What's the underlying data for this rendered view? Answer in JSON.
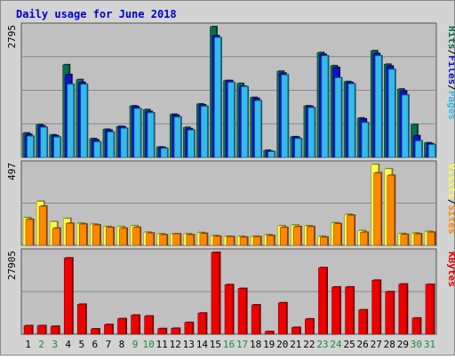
{
  "chart_data": {
    "type": "bar",
    "title": "Daily usage for June 2018",
    "days": [
      "1",
      "2",
      "3",
      "4",
      "5",
      "6",
      "7",
      "8",
      "9",
      "10",
      "11",
      "12",
      "13",
      "14",
      "15",
      "16",
      "17",
      "18",
      "19",
      "20",
      "21",
      "22",
      "23",
      "24",
      "25",
      "26",
      "27",
      "28",
      "29",
      "30",
      "31"
    ],
    "weekend_days": [
      "2",
      "3",
      "9",
      "10",
      "16",
      "17",
      "23",
      "24",
      "30",
      "31"
    ],
    "colors": {
      "title": "#0000cc",
      "hits": "#0b6e4f",
      "files": "#1111cc",
      "pages": "#33bbee",
      "visits": "#ffff44",
      "sites": "#ff8800",
      "kbytes": "#ee0000",
      "weekday_label": "#000000",
      "weekend_label": "#1a8a3a",
      "panel_bg": "#c0c0c0",
      "frame_bg": "#d3d3d3",
      "grid": "#888888"
    },
    "panels": [
      {
        "id": "hits-files-pages",
        "axis_label": "2795",
        "max": 2795,
        "side_labels": [
          {
            "text": "Hits",
            "color": "hits"
          },
          {
            "text": "/",
            "color": "separator"
          },
          {
            "text": "Files",
            "color": "files"
          },
          {
            "text": "/",
            "color": "separator"
          },
          {
            "text": "Pages",
            "color": "pages"
          }
        ],
        "series": [
          {
            "name": "Hits",
            "color": "hits",
            "values": [
              520,
              700,
              480,
              1980,
              1660,
              400,
              600,
              660,
              1100,
              1020,
              220,
              920,
              640,
              1140,
              2795,
              1640,
              1580,
              1280,
              150,
              1840,
              440,
              1100,
              2240,
              1960,
              1620,
              840,
              2280,
              1990,
              1460,
              700,
              310
            ]
          },
          {
            "name": "Files",
            "color": "files",
            "values": [
              490,
              670,
              460,
              1770,
              1600,
              370,
              580,
              650,
              1080,
              980,
              210,
              900,
              610,
              1120,
              2600,
              1640,
              1520,
              1260,
              130,
              1800,
              430,
              1090,
              2200,
              1920,
              1600,
              820,
              2220,
              1950,
              1420,
              460,
              290
            ]
          },
          {
            "name": "Pages",
            "color": "pages",
            "values": [
              450,
              640,
              430,
              1560,
              1560,
              330,
              540,
              620,
              1040,
              950,
              190,
              860,
              580,
              1090,
              2560,
              1600,
              1510,
              1210,
              120,
              1760,
              400,
              1060,
              2170,
              1700,
              1570,
              740,
              2170,
              1880,
              1330,
              350,
              270
            ]
          }
        ]
      },
      {
        "id": "visits-sites",
        "axis_label": "497",
        "max": 497,
        "side_labels": [
          {
            "text": "Visits",
            "color": "visits"
          },
          {
            "text": "/",
            "color": "separator"
          },
          {
            "text": "Sites",
            "color": "sites"
          }
        ],
        "series": [
          {
            "name": "Visits",
            "color": "visits",
            "values": [
              170,
              270,
              145,
              165,
              135,
              130,
              115,
              115,
              120,
              80,
              70,
              70,
              70,
              78,
              60,
              55,
              55,
              55,
              65,
              120,
              125,
              120,
              55,
              138,
              190,
              90,
              497,
              470,
              72,
              75,
              85
            ]
          },
          {
            "name": "Sites",
            "color": "sites",
            "values": [
              160,
              240,
              105,
              135,
              130,
              125,
              110,
              105,
              110,
              75,
              65,
              70,
              65,
              73,
              55,
              53,
              50,
              53,
              60,
              110,
              115,
              115,
              50,
              133,
              185,
              80,
              445,
              430,
              67,
              70,
              80
            ]
          }
        ]
      },
      {
        "id": "kbytes",
        "axis_label": "27905",
        "max": 27905,
        "side_labels": [
          {
            "text": "KBytes",
            "color": "kbytes"
          }
        ],
        "series": [
          {
            "name": "KBytes",
            "color": "kbytes",
            "values": [
              2900,
              2900,
              2700,
              26000,
              10200,
              1800,
              3300,
              5300,
              6500,
              6200,
              1900,
              2000,
              4000,
              7200,
              27905,
              16900,
              15600,
              10000,
              900,
              10700,
              2300,
              5200,
              22700,
              16100,
              16100,
              8300,
              18400,
              14500,
              17100,
              5500,
              17000
            ]
          }
        ]
      }
    ]
  }
}
